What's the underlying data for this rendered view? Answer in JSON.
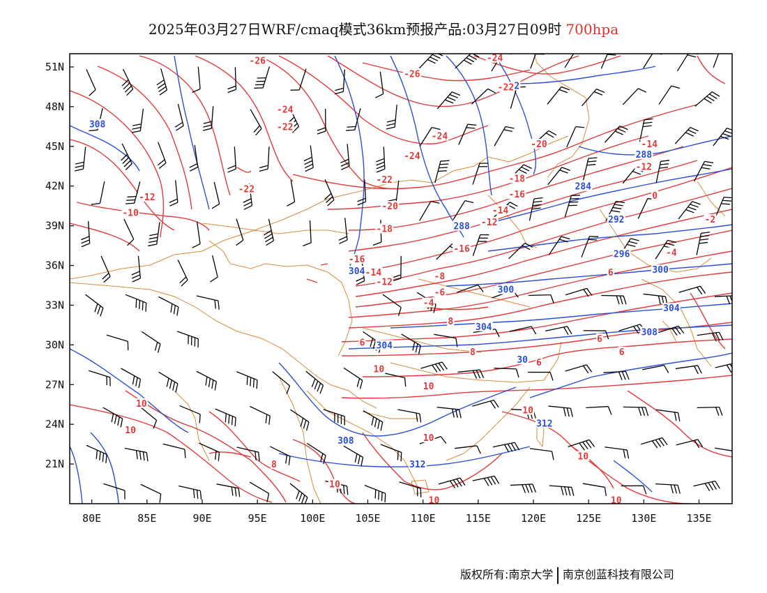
{
  "title": {
    "text": "2025年03月27日WRF/cmaq模式36km预报产品:03月27日09时",
    "level": "700hpa"
  },
  "axes": {
    "x_ticks": [
      "80E",
      "85E",
      "90E",
      "95E",
      "100E",
      "105E",
      "110E",
      "115E",
      "120E",
      "125E",
      "130E",
      "135E"
    ],
    "y_ticks": [
      "51N",
      "48N",
      "45N",
      "42N",
      "39N",
      "36N",
      "33N",
      "30N",
      "27N",
      "24N",
      "21N"
    ]
  },
  "map_extent": {
    "lon": [
      78,
      138
    ],
    "lat": [
      18,
      52
    ]
  },
  "colors": {
    "temperature_contours": "#e23a3a",
    "height_contours": "#2a4fd6",
    "borders": "#d98a3a",
    "wind_barbs": "#000000",
    "level_text": "#e03030"
  },
  "temperature_labels": [
    {
      "text": "-26",
      "lon": 95.0,
      "lat": 51.5
    },
    {
      "text": "-26",
      "lon": 109.0,
      "lat": 50.5
    },
    {
      "text": "-24",
      "lon": 116.5,
      "lat": 51.7
    },
    {
      "text": "-22",
      "lon": 117.5,
      "lat": 49.5
    },
    {
      "text": "-24",
      "lon": 97.5,
      "lat": 47.8
    },
    {
      "text": "-22",
      "lon": 97.5,
      "lat": 46.5
    },
    {
      "text": "-24",
      "lon": 111.5,
      "lat": 45.8
    },
    {
      "text": "-24",
      "lon": 109.0,
      "lat": 44.3
    },
    {
      "text": "-20",
      "lon": 120.5,
      "lat": 45.2
    },
    {
      "text": "-14",
      "lon": 130.5,
      "lat": 45.2
    },
    {
      "text": "-12",
      "lon": 130.0,
      "lat": 43.5
    },
    {
      "text": "-18",
      "lon": 118.5,
      "lat": 42.6
    },
    {
      "text": "-16",
      "lon": 118.5,
      "lat": 41.4
    },
    {
      "text": "-14",
      "lon": 117.0,
      "lat": 40.2
    },
    {
      "text": "-12",
      "lon": 116.0,
      "lat": 39.3
    },
    {
      "text": "-22",
      "lon": 94.0,
      "lat": 41.8
    },
    {
      "text": "-22",
      "lon": 106.5,
      "lat": 42.5
    },
    {
      "text": "-20",
      "lon": 107.0,
      "lat": 40.5
    },
    {
      "text": "-18",
      "lon": 106.5,
      "lat": 38.8
    },
    {
      "text": "-16",
      "lon": 113.5,
      "lat": 37.3
    },
    {
      "text": "-16",
      "lon": 104.0,
      "lat": 36.5
    },
    {
      "text": "-14",
      "lon": 105.5,
      "lat": 35.5
    },
    {
      "text": "-12",
      "lon": 106.5,
      "lat": 34.8
    },
    {
      "text": "-8",
      "lon": 111.5,
      "lat": 35.2
    },
    {
      "text": "-6",
      "lon": 111.5,
      "lat": 34.0
    },
    {
      "text": "-4",
      "lon": 110.5,
      "lat": 33.2
    },
    {
      "text": "-12",
      "lon": 85.0,
      "lat": 41.2
    },
    {
      "text": "-10",
      "lon": 83.5,
      "lat": 40.0
    },
    {
      "text": "-4",
      "lon": 132.5,
      "lat": 37.0
    },
    {
      "text": "-2",
      "lon": 136.0,
      "lat": 39.5
    },
    {
      "text": "0",
      "lon": 131.0,
      "lat": 41.3
    },
    {
      "text": "6",
      "lon": 127.0,
      "lat": 35.5
    },
    {
      "text": "8",
      "lon": 112.5,
      "lat": 31.8
    },
    {
      "text": "6",
      "lon": 104.5,
      "lat": 30.2
    },
    {
      "text": "8",
      "lon": 114.5,
      "lat": 29.5
    },
    {
      "text": "6",
      "lon": 126.0,
      "lat": 30.5
    },
    {
      "text": "6",
      "lon": 128.0,
      "lat": 29.5
    },
    {
      "text": "6",
      "lon": 120.5,
      "lat": 28.7
    },
    {
      "text": "10",
      "lon": 106.0,
      "lat": 28.2
    },
    {
      "text": "10",
      "lon": 110.5,
      "lat": 26.9
    },
    {
      "text": "10",
      "lon": 84.5,
      "lat": 25.6
    },
    {
      "text": "10",
      "lon": 83.5,
      "lat": 23.6
    },
    {
      "text": "10",
      "lon": 119.5,
      "lat": 25.1
    },
    {
      "text": "10",
      "lon": 110.5,
      "lat": 23.0
    },
    {
      "text": "10",
      "lon": 124.5,
      "lat": 21.6
    },
    {
      "text": "8",
      "lon": 96.5,
      "lat": 21.0
    },
    {
      "text": "10",
      "lon": 102.0,
      "lat": 19.5
    },
    {
      "text": "10",
      "lon": 111.0,
      "lat": 18.3
    },
    {
      "text": "10",
      "lon": 127.5,
      "lat": 18.3
    }
  ],
  "height_labels": [
    {
      "text": "2",
      "lon": 118.5,
      "lat": 49.6
    },
    {
      "text": "308",
      "lon": 80.5,
      "lat": 46.7
    },
    {
      "text": "288",
      "lon": 130.0,
      "lat": 44.4
    },
    {
      "text": "284",
      "lon": 124.5,
      "lat": 42.0
    },
    {
      "text": "288",
      "lon": 113.5,
      "lat": 39.0
    },
    {
      "text": "292",
      "lon": 127.5,
      "lat": 39.5
    },
    {
      "text": "296",
      "lon": 128.0,
      "lat": 36.9
    },
    {
      "text": "300",
      "lon": 131.5,
      "lat": 35.7
    },
    {
      "text": "300",
      "lon": 117.5,
      "lat": 34.2
    },
    {
      "text": "304",
      "lon": 132.5,
      "lat": 32.8
    },
    {
      "text": "304",
      "lon": 104.0,
      "lat": 35.6
    },
    {
      "text": "304",
      "lon": 115.5,
      "lat": 31.4
    },
    {
      "text": "308",
      "lon": 130.5,
      "lat": 31.0
    },
    {
      "text": "304",
      "lon": 106.5,
      "lat": 30.0
    },
    {
      "text": "30",
      "lon": 119.0,
      "lat": 28.9
    },
    {
      "text": "312",
      "lon": 121.0,
      "lat": 24.1
    },
    {
      "text": "308",
      "lon": 103.0,
      "lat": 22.8
    },
    {
      "text": "312",
      "lon": 109.5,
      "lat": 21.0
    }
  ],
  "credits": {
    "left": "版权所有:南京大学",
    "right": "南京创蓝科技有限公司"
  }
}
